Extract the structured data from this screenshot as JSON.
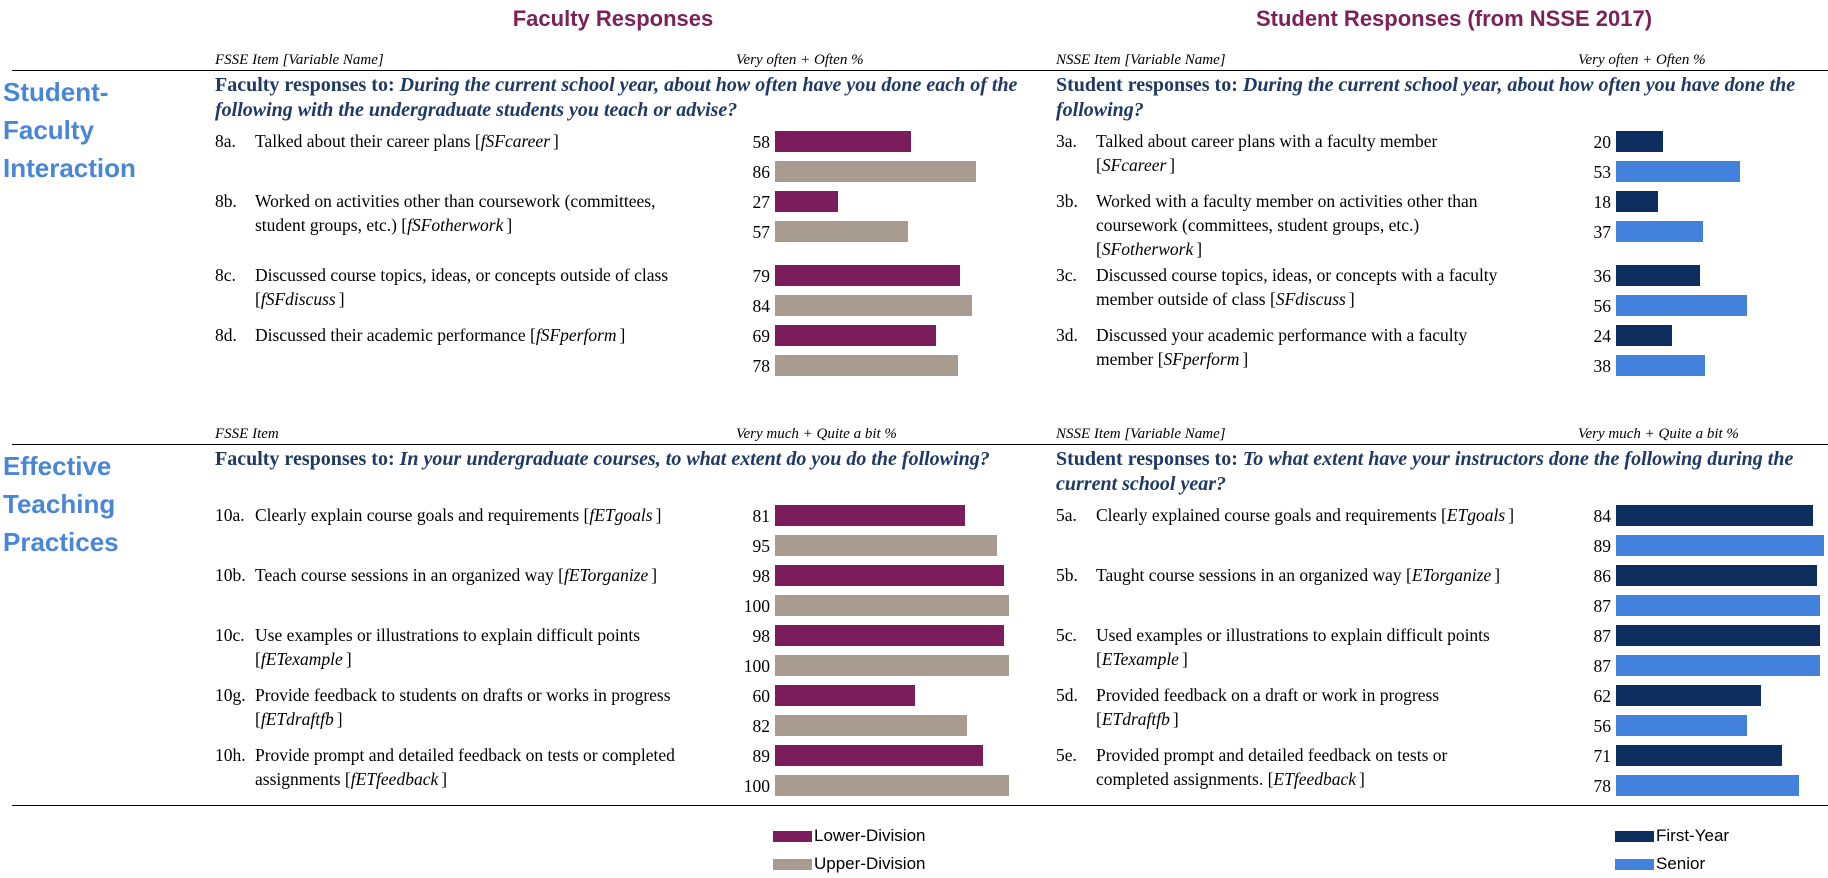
{
  "header": {
    "faculty_title": "Faculty Responses",
    "student_title": "Student Responses (from NSSE 2017)"
  },
  "faculty_legend": [
    {
      "name": "Lower-Division",
      "color": "#7b1c5c"
    },
    {
      "name": "Upper-Division",
      "color": "#a89b8f"
    }
  ],
  "student_legend": [
    {
      "name": "First-Year",
      "color": "#0e2d5f"
    },
    {
      "name": "Senior",
      "color": "#4282dc"
    }
  ],
  "sections": [
    {
      "name_lines": [
        "Student-",
        "Faculty",
        "Interaction"
      ],
      "faculty_item_header": "FSSE Item [Variable Name]",
      "faculty_pct_header": "Very often + Often %",
      "student_item_header": "NSSE Item [Variable Name]",
      "student_pct_header": "Very often + Often %",
      "faculty_prompt": {
        "lead": "Faculty responses to: ",
        "question": "During the current school year, about how often have you done each of the following with the undergraduate students you teach or advise?"
      },
      "student_prompt": {
        "lead": "Student responses to: ",
        "question": "During the current school year, about how often you have done the following?"
      },
      "faculty_items": [
        {
          "code": "8a.",
          "text": "Talked about their career plans [",
          "var": "fSFcareer",
          "after": "]",
          "values": [
            58,
            86
          ]
        },
        {
          "code": "8b.",
          "text": "Worked on activities other than coursework (committees, student groups, etc.) [",
          "var": "fSFotherwork",
          "after": "]",
          "values": [
            27,
            57
          ]
        },
        {
          "code": "8c.",
          "text": "Discussed course topics, ideas, or concepts outside of class [",
          "var": "fSFdiscuss",
          "after": "]",
          "values": [
            79,
            84
          ]
        },
        {
          "code": "8d.",
          "text": "Discussed their academic performance [",
          "var": "fSFperform",
          "after": "]",
          "values": [
            69,
            78
          ]
        }
      ],
      "student_items": [
        {
          "code": "3a.",
          "text": "Talked about career plans with a faculty member [",
          "var": "SFcareer",
          "after": "]",
          "values": [
            20,
            53
          ]
        },
        {
          "code": "3b.",
          "text": "Worked with a faculty member on activities other than coursework (committees, student groups, etc.) [",
          "var": "SFotherwork",
          "after": "]",
          "values": [
            18,
            37
          ]
        },
        {
          "code": "3c.",
          "text": "Discussed course topics, ideas, or concepts with a faculty member outside of class [",
          "var": "SFdiscuss",
          "after": "]",
          "values": [
            36,
            56
          ]
        },
        {
          "code": "3d.",
          "text": "Discussed your academic performance with a faculty member [",
          "var": "SFperform",
          "after": "]",
          "values": [
            24,
            38
          ]
        }
      ]
    },
    {
      "name_lines": [
        "Effective",
        "Teaching",
        "Practices"
      ],
      "faculty_item_header": "FSSE Item",
      "faculty_pct_header": "Very much + Quite a bit %",
      "student_item_header": "NSSE Item [Variable Name]",
      "student_pct_header": "Very much + Quite a bit %",
      "faculty_prompt": {
        "lead": "Faculty responses to: ",
        "question": "In your undergraduate courses, to what extent do you do the following?"
      },
      "student_prompt": {
        "lead": "Student responses to: ",
        "question": "To what extent have your instructors done the following during the current school year?"
      },
      "faculty_items": [
        {
          "code": "10a.",
          "text": "Clearly explain course goals and requirements [",
          "var": "fETgoals",
          "after": "]",
          "values": [
            81,
            95
          ]
        },
        {
          "code": "10b.",
          "text": "Teach course sessions in an organized way [",
          "var": "fETorganize",
          "after": "]",
          "values": [
            98,
            100
          ]
        },
        {
          "code": "10c.",
          "text": "Use examples or illustrations to explain difficult points [",
          "var": "fETexample",
          "after": "]",
          "values": [
            98,
            100
          ]
        },
        {
          "code": "10g.",
          "text": "Provide feedback to students on drafts or works in progress [",
          "var": "fETdraftfb",
          "after": "]",
          "values": [
            60,
            82
          ]
        },
        {
          "code": "10h.",
          "text": "Provide prompt and detailed feedback on tests or completed assignments [",
          "var": "fETfeedback",
          "after": "]",
          "values": [
            89,
            100
          ]
        }
      ],
      "student_items": [
        {
          "code": "5a.",
          "text": "Clearly explained course goals and requirements [",
          "var": "ETgoals",
          "after": "]",
          "values": [
            84,
            89
          ]
        },
        {
          "code": "5b.",
          "text": "Taught course sessions in an organized way [",
          "var": "ETorganize",
          "after": "]",
          "values": [
            86,
            87
          ]
        },
        {
          "code": "5c.",
          "text": "Used examples or illustrations to explain difficult points [",
          "var": "ETexample",
          "after": "]",
          "values": [
            87,
            87
          ]
        },
        {
          "code": "5d.",
          "text": "Provided feedback on a draft or work in progress [",
          "var": "ETdraftfb",
          "after": "]",
          "values": [
            62,
            56
          ]
        },
        {
          "code": "5e.",
          "text": "Provided prompt and detailed feedback on tests or completed assignments. [",
          "var": "ETfeedback",
          "after": "]",
          "values": [
            71,
            78
          ]
        }
      ]
    }
  ]
}
